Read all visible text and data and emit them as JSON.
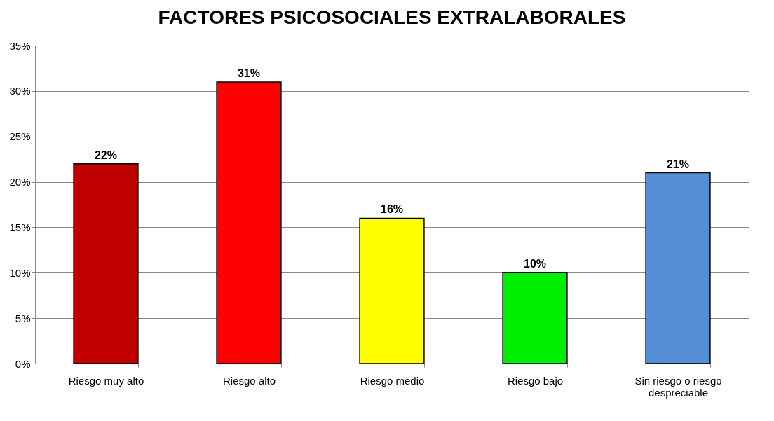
{
  "chart_data": {
    "type": "bar",
    "title": "FACTORES PSICOSOCIALES EXTRALABORALES",
    "categories": [
      "Riesgo muy alto",
      "Riesgo alto",
      "Riesgo medio",
      "Riesgo bajo",
      "Sin riesgo o riesgo despreciable"
    ],
    "values": [
      22,
      31,
      16,
      10,
      21
    ],
    "value_labels": [
      "22%",
      "31%",
      "16%",
      "10%",
      "21%"
    ],
    "colors": [
      "#c00000",
      "#ff0000",
      "#ffff00",
      "#00ee00",
      "#558ed5"
    ],
    "ylim": [
      0,
      35
    ],
    "yticks": [
      {
        "value": 0,
        "label": "0%"
      },
      {
        "value": 5,
        "label": "5%"
      },
      {
        "value": 10,
        "label": "10%"
      },
      {
        "value": 15,
        "label": "15%"
      },
      {
        "value": 20,
        "label": "20%"
      },
      {
        "value": 25,
        "label": "25%"
      },
      {
        "value": 30,
        "label": "30%"
      },
      {
        "value": 35,
        "label": "35%"
      }
    ],
    "grid": "y"
  }
}
